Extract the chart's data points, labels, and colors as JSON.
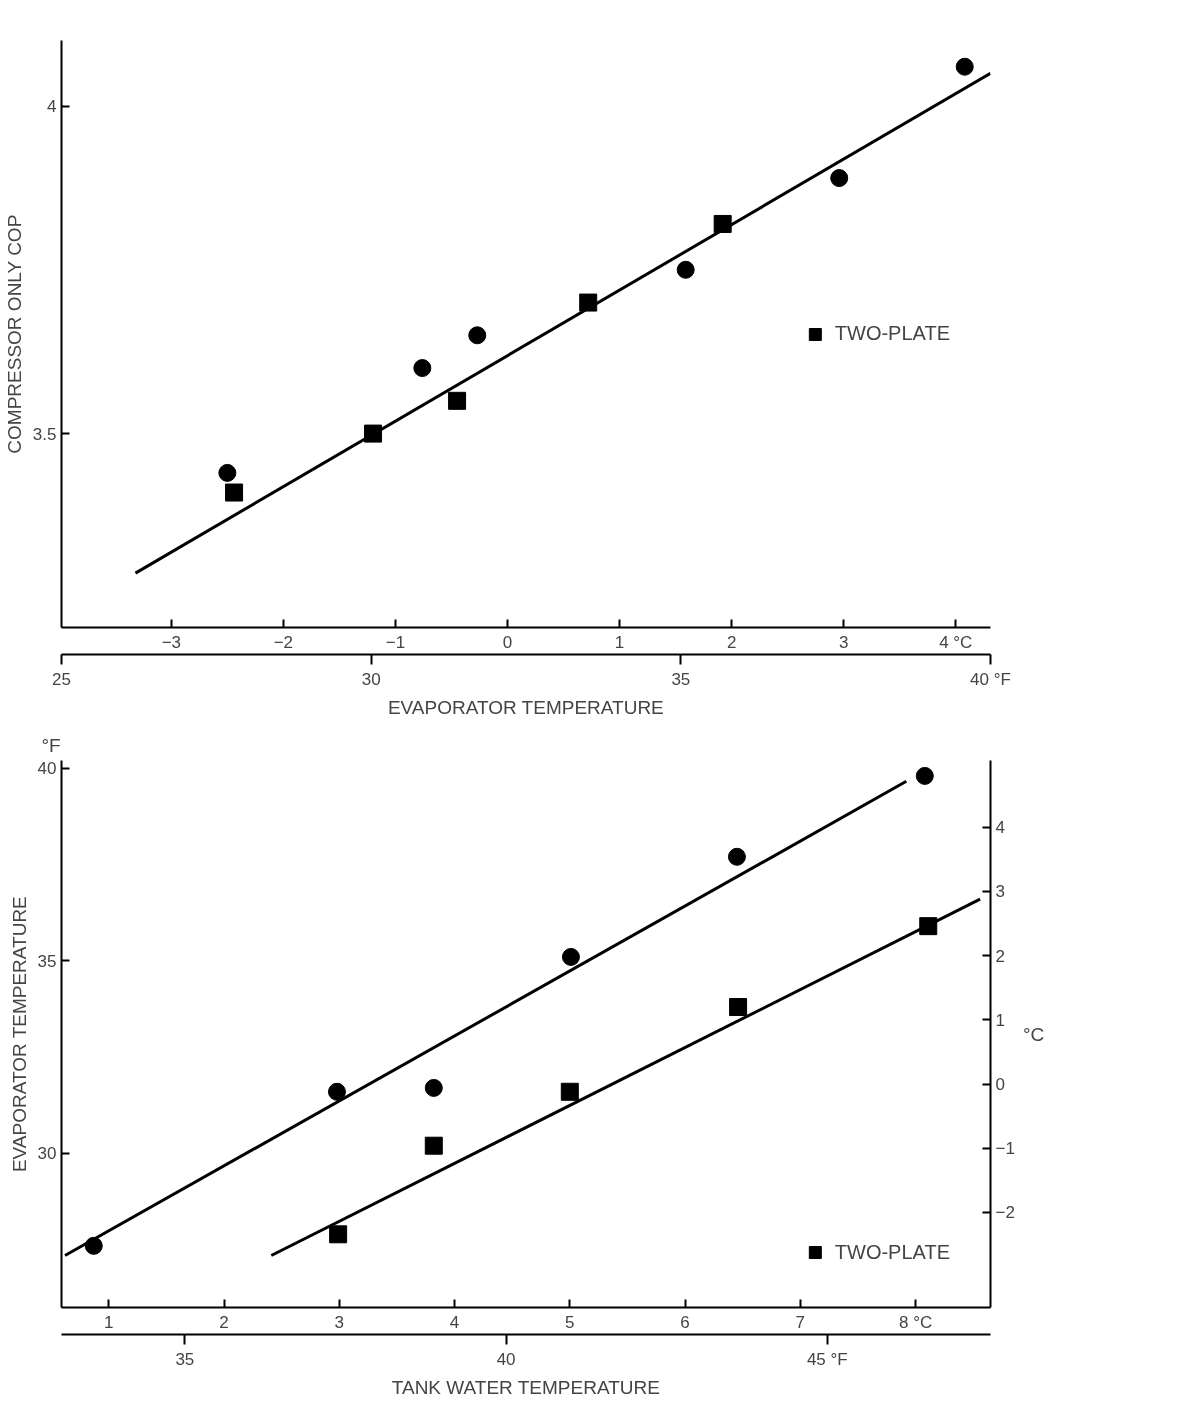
{
  "chart_data": [
    {
      "type": "scatter",
      "ylabel": "COMPRESSOR ONLY COP",
      "xlabel": "EVAPORATOR TEMPERATURE",
      "xlim": [
        -3.98,
        4.31
      ],
      "xticks": [
        -3,
        -2,
        -1,
        0,
        1,
        2,
        3,
        {
          "value": 4,
          "label": "4 °C"
        }
      ],
      "x2lim": [
        25,
        40
      ],
      "x2ticks": [
        25,
        30,
        35,
        {
          "value": 40,
          "label": "40 °F"
        }
      ],
      "ylim": [
        3.204,
        4.1
      ],
      "yticks": [
        3.5,
        4.0
      ],
      "grid": false,
      "legend": "right",
      "series": [
        {
          "marker": "circle",
          "color": "#000000",
          "x": [
            -2.5,
            -0.76,
            -0.27,
            1.59,
            2.96,
            4.08
          ],
          "values": [
            3.44,
            3.6,
            3.65,
            3.75,
            3.89,
            4.06
          ]
        },
        {
          "marker": "square",
          "name": "TWO-PLATE",
          "color": "#000000",
          "x": [
            -2.44,
            -1.2,
            -0.45,
            0.72,
            1.92
          ],
          "values": [
            3.41,
            3.5,
            3.55,
            3.7,
            3.82
          ]
        },
        {
          "type": "line",
          "line_style": "solid",
          "color": "#000000",
          "x": [
            -3.32,
            4.31
          ],
          "values": [
            3.287,
            4.05
          ]
        }
      ]
    },
    {
      "type": "scatter",
      "ylabel": "EVAPORATOR TEMPERATURE",
      "xlabel": "TANK WATER TEMPERATURE",
      "y2label": "°C",
      "annotations": [
        "°F"
      ],
      "xlim": [
        0.59,
        8.65
      ],
      "xticks": [
        1,
        2,
        3,
        4,
        5,
        6,
        7,
        {
          "value": 8,
          "label": "8 °C"
        }
      ],
      "x2lim": [
        33.08,
        47.54
      ],
      "x2ticks": [
        35,
        40,
        {
          "value": 45,
          "label": "45 °F"
        }
      ],
      "ylim": [
        26,
        40.2
      ],
      "yticks": [
        30,
        35,
        40
      ],
      "y2lim": [
        -3.48,
        5.04
      ],
      "y2ticks": [
        -2,
        -1,
        0,
        1,
        2,
        3,
        4
      ],
      "grid": false,
      "legend": "bottom right",
      "series": [
        {
          "marker": "circle",
          "color": "#000000",
          "x": [
            0.87,
            2.98,
            3.82,
            5.01,
            6.45,
            8.08
          ],
          "values": [
            27.6,
            31.6,
            31.7,
            35.1,
            37.7,
            39.8
          ]
        },
        {
          "marker": "square",
          "name": "TWO-PLATE",
          "color": "#000000",
          "x": [
            2.99,
            3.82,
            5.0,
            6.46,
            8.11
          ],
          "values": [
            27.9,
            30.2,
            31.6,
            33.8,
            35.9
          ]
        },
        {
          "type": "line",
          "line_style": "solid",
          "color": "#000000",
          "x": [
            0.62,
            7.92
          ],
          "values": [
            27.35,
            39.66
          ]
        },
        {
          "type": "line",
          "line_style": "solid",
          "color": "#000000",
          "x": [
            2.41,
            8.56
          ],
          "values": [
            27.35,
            36.6
          ]
        }
      ]
    }
  ]
}
